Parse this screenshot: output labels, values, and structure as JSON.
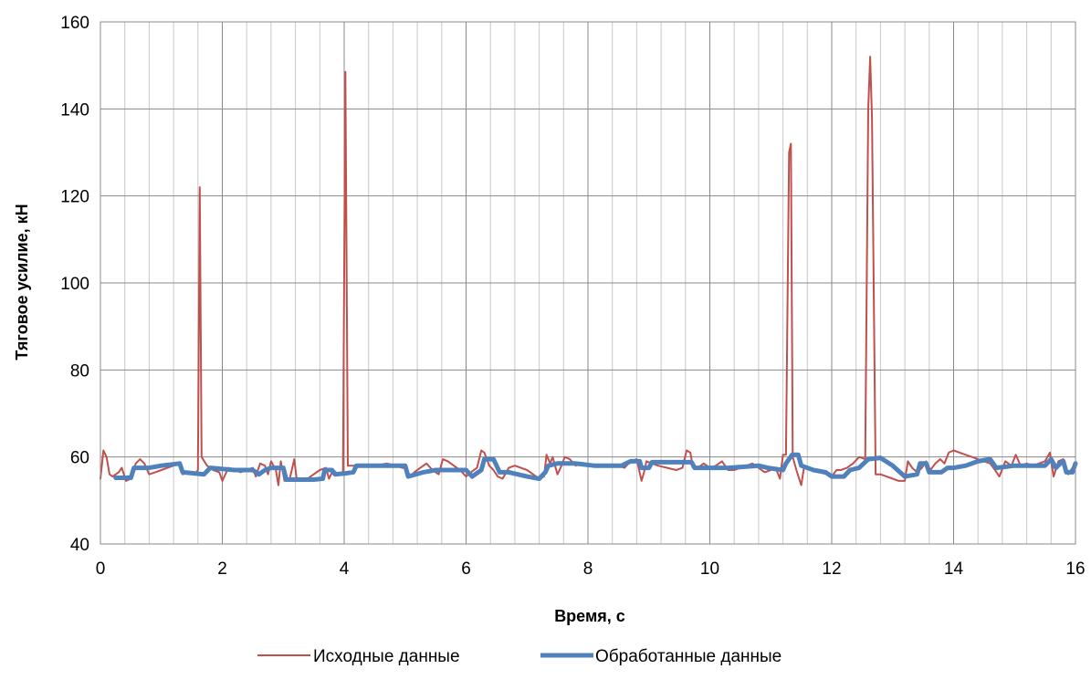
{
  "chart_data": {
    "type": "line",
    "xlabel": "Время,  с",
    "ylabel": "Тяговое  усилие,  кН",
    "xlim": [
      0,
      16
    ],
    "ylim": [
      40,
      160
    ],
    "x_ticks": [
      "0",
      "2",
      "4",
      "6",
      "8",
      "10",
      "12",
      "14",
      "16"
    ],
    "y_ticks": [
      "40",
      "60",
      "80",
      "100",
      "120",
      "140",
      "160"
    ],
    "minor_x_step": 0.4,
    "grid": true,
    "legend_position": "bottom",
    "series": [
      {
        "name": "Исходные данные",
        "color": "#c0504d",
        "points": [
          [
            0.0,
            55.0
          ],
          [
            0.05,
            61.5
          ],
          [
            0.1,
            60.0
          ],
          [
            0.15,
            56.0
          ],
          [
            0.2,
            55.5
          ],
          [
            0.3,
            56.5
          ],
          [
            0.35,
            57.5
          ],
          [
            0.42,
            54.5
          ],
          [
            0.5,
            55.0
          ],
          [
            0.58,
            58.5
          ],
          [
            0.65,
            59.5
          ],
          [
            0.72,
            58.5
          ],
          [
            0.8,
            56.0
          ],
          [
            0.9,
            56.5
          ],
          [
            1.0,
            57.0
          ],
          [
            1.1,
            57.5
          ],
          [
            1.2,
            58.0
          ],
          [
            1.28,
            58.5
          ],
          [
            1.35,
            56.0
          ],
          [
            1.45,
            56.5
          ],
          [
            1.55,
            56.0
          ],
          [
            1.6,
            57.0
          ],
          [
            1.63,
            122.0
          ],
          [
            1.66,
            60.0
          ],
          [
            1.75,
            58.0
          ],
          [
            1.85,
            57.0
          ],
          [
            1.95,
            56.5
          ],
          [
            2.0,
            54.5
          ],
          [
            2.1,
            57.5
          ],
          [
            2.2,
            57.0
          ],
          [
            2.3,
            56.5
          ],
          [
            2.4,
            57.0
          ],
          [
            2.5,
            57.5
          ],
          [
            2.55,
            55.5
          ],
          [
            2.62,
            58.5
          ],
          [
            2.7,
            58.0
          ],
          [
            2.75,
            56.0
          ],
          [
            2.8,
            59.0
          ],
          [
            2.88,
            57.0
          ],
          [
            2.92,
            53.5
          ],
          [
            2.96,
            59.0
          ],
          [
            3.02,
            54.5
          ],
          [
            3.1,
            54.5
          ],
          [
            3.18,
            59.5
          ],
          [
            3.22,
            55.0
          ],
          [
            3.3,
            54.5
          ],
          [
            3.4,
            55.0
          ],
          [
            3.5,
            56.0
          ],
          [
            3.6,
            57.0
          ],
          [
            3.7,
            57.5
          ],
          [
            3.75,
            55.0
          ],
          [
            3.82,
            57.0
          ],
          [
            3.9,
            56.0
          ],
          [
            3.98,
            56.5
          ],
          [
            4.02,
            148.5
          ],
          [
            4.06,
            58.0
          ],
          [
            4.15,
            58.0
          ],
          [
            4.3,
            58.0
          ],
          [
            4.5,
            58.0
          ],
          [
            4.7,
            58.5
          ],
          [
            4.85,
            58.0
          ],
          [
            4.95,
            57.5
          ],
          [
            5.02,
            57.5
          ],
          [
            5.08,
            55.5
          ],
          [
            5.15,
            56.5
          ],
          [
            5.25,
            57.5
          ],
          [
            5.35,
            58.5
          ],
          [
            5.45,
            57.0
          ],
          [
            5.55,
            56.0
          ],
          [
            5.62,
            59.5
          ],
          [
            5.7,
            59.0
          ],
          [
            5.8,
            58.0
          ],
          [
            5.9,
            57.0
          ],
          [
            6.0,
            55.5
          ],
          [
            6.08,
            56.5
          ],
          [
            6.18,
            57.5
          ],
          [
            6.25,
            61.5
          ],
          [
            6.3,
            61.0
          ],
          [
            6.38,
            58.0
          ],
          [
            6.45,
            57.0
          ],
          [
            6.52,
            55.5
          ],
          [
            6.6,
            55.0
          ],
          [
            6.7,
            57.5
          ],
          [
            6.8,
            58.0
          ],
          [
            6.9,
            57.5
          ],
          [
            7.0,
            57.0
          ],
          [
            7.1,
            56.0
          ],
          [
            7.2,
            55.0
          ],
          [
            7.28,
            55.5
          ],
          [
            7.32,
            60.5
          ],
          [
            7.38,
            58.5
          ],
          [
            7.42,
            60.0
          ],
          [
            7.5,
            56.0
          ],
          [
            7.55,
            57.5
          ],
          [
            7.62,
            60.0
          ],
          [
            7.7,
            59.5
          ],
          [
            7.8,
            58.0
          ],
          [
            7.9,
            58.5
          ],
          [
            8.0,
            58.0
          ],
          [
            8.1,
            58.0
          ],
          [
            8.3,
            58.0
          ],
          [
            8.5,
            58.0
          ],
          [
            8.6,
            57.5
          ],
          [
            8.7,
            59.0
          ],
          [
            8.8,
            59.5
          ],
          [
            8.88,
            54.5
          ],
          [
            8.92,
            56.5
          ],
          [
            8.96,
            59.0
          ],
          [
            9.05,
            58.5
          ],
          [
            9.15,
            58.0
          ],
          [
            9.3,
            57.5
          ],
          [
            9.45,
            57.0
          ],
          [
            9.55,
            57.5
          ],
          [
            9.62,
            61.5
          ],
          [
            9.68,
            61.0
          ],
          [
            9.72,
            58.0
          ],
          [
            9.8,
            57.5
          ],
          [
            9.9,
            58.5
          ],
          [
            10.0,
            57.5
          ],
          [
            10.1,
            58.0
          ],
          [
            10.2,
            59.0
          ],
          [
            10.3,
            57.0
          ],
          [
            10.4,
            57.0
          ],
          [
            10.5,
            57.5
          ],
          [
            10.6,
            58.0
          ],
          [
            10.7,
            58.5
          ],
          [
            10.8,
            57.5
          ],
          [
            10.9,
            56.5
          ],
          [
            11.0,
            57.0
          ],
          [
            11.08,
            57.5
          ],
          [
            11.15,
            55.0
          ],
          [
            11.2,
            60.5
          ],
          [
            11.25,
            60.5
          ],
          [
            11.3,
            130.0
          ],
          [
            11.33,
            132.0
          ],
          [
            11.36,
            60.0
          ],
          [
            11.42,
            57.0
          ],
          [
            11.5,
            53.5
          ],
          [
            11.55,
            58.0
          ],
          [
            11.65,
            57.5
          ],
          [
            11.8,
            56.5
          ],
          [
            11.92,
            56.0
          ],
          [
            12.0,
            55.5
          ],
          [
            12.08,
            57.0
          ],
          [
            12.15,
            57.0
          ],
          [
            12.25,
            57.5
          ],
          [
            12.35,
            58.5
          ],
          [
            12.45,
            60.0
          ],
          [
            12.55,
            59.5
          ],
          [
            12.6,
            140.0
          ],
          [
            12.63,
            152.0
          ],
          [
            12.66,
            138.0
          ],
          [
            12.72,
            56.0
          ],
          [
            12.8,
            56.0
          ],
          [
            12.9,
            55.5
          ],
          [
            13.0,
            55.0
          ],
          [
            13.1,
            54.5
          ],
          [
            13.2,
            54.5
          ],
          [
            13.25,
            59.0
          ],
          [
            13.32,
            57.5
          ],
          [
            13.4,
            56.5
          ],
          [
            13.48,
            57.5
          ],
          [
            13.55,
            59.0
          ],
          [
            13.62,
            57.0
          ],
          [
            13.7,
            58.5
          ],
          [
            13.78,
            59.5
          ],
          [
            13.85,
            58.5
          ],
          [
            13.92,
            61.0
          ],
          [
            14.0,
            61.5
          ],
          [
            14.1,
            61.0
          ],
          [
            14.2,
            60.5
          ],
          [
            14.3,
            60.0
          ],
          [
            14.4,
            59.5
          ],
          [
            14.5,
            59.0
          ],
          [
            14.6,
            58.5
          ],
          [
            14.68,
            57.0
          ],
          [
            14.75,
            55.5
          ],
          [
            14.85,
            59.0
          ],
          [
            14.95,
            58.0
          ],
          [
            15.02,
            60.5
          ],
          [
            15.1,
            58.0
          ],
          [
            15.2,
            58.5
          ],
          [
            15.3,
            58.0
          ],
          [
            15.4,
            58.5
          ],
          [
            15.5,
            59.0
          ],
          [
            15.58,
            61.0
          ],
          [
            15.64,
            55.5
          ],
          [
            15.72,
            59.0
          ],
          [
            15.8,
            59.5
          ],
          [
            15.88,
            56.0
          ],
          [
            15.95,
            57.5
          ],
          [
            16.0,
            57.5
          ]
        ]
      },
      {
        "name": "Обработанные данные",
        "color": "#4f81bd",
        "points": [
          [
            0.25,
            55.2
          ],
          [
            0.5,
            55.2
          ],
          [
            0.55,
            57.5
          ],
          [
            0.8,
            57.5
          ],
          [
            1.0,
            58.0
          ],
          [
            1.3,
            58.5
          ],
          [
            1.35,
            56.5
          ],
          [
            1.7,
            56.0
          ],
          [
            1.8,
            57.5
          ],
          [
            2.2,
            57.0
          ],
          [
            2.5,
            57.0
          ],
          [
            2.6,
            56.0
          ],
          [
            2.7,
            57.0
          ],
          [
            2.8,
            57.5
          ],
          [
            3.0,
            57.5
          ],
          [
            3.05,
            54.8
          ],
          [
            3.5,
            54.8
          ],
          [
            3.65,
            55.0
          ],
          [
            3.68,
            57.0
          ],
          [
            3.8,
            57.0
          ],
          [
            3.85,
            56.0
          ],
          [
            4.0,
            56.2
          ],
          [
            4.15,
            56.5
          ],
          [
            4.2,
            58.0
          ],
          [
            4.6,
            58.0
          ],
          [
            5.0,
            58.0
          ],
          [
            5.05,
            55.5
          ],
          [
            5.3,
            56.5
          ],
          [
            5.5,
            57.0
          ],
          [
            5.8,
            57.0
          ],
          [
            6.0,
            57.0
          ],
          [
            6.1,
            55.5
          ],
          [
            6.25,
            57.0
          ],
          [
            6.3,
            59.5
          ],
          [
            6.45,
            59.5
          ],
          [
            6.5,
            58.0
          ],
          [
            6.55,
            56.5
          ],
          [
            6.7,
            56.5
          ],
          [
            7.0,
            55.5
          ],
          [
            7.2,
            55.0
          ],
          [
            7.3,
            56.5
          ],
          [
            7.35,
            58.0
          ],
          [
            7.5,
            58.5
          ],
          [
            7.8,
            58.5
          ],
          [
            8.1,
            58.0
          ],
          [
            8.4,
            58.0
          ],
          [
            8.55,
            58.0
          ],
          [
            8.7,
            59.0
          ],
          [
            8.85,
            59.0
          ],
          [
            8.88,
            57.5
          ],
          [
            9.0,
            57.5
          ],
          [
            9.05,
            58.8
          ],
          [
            9.6,
            58.8
          ],
          [
            9.7,
            58.8
          ],
          [
            9.75,
            57.5
          ],
          [
            10.1,
            57.5
          ],
          [
            10.3,
            57.5
          ],
          [
            10.6,
            57.8
          ],
          [
            10.8,
            58.0
          ],
          [
            10.95,
            57.5
          ],
          [
            11.2,
            57.0
          ],
          [
            11.25,
            58.5
          ],
          [
            11.35,
            60.5
          ],
          [
            11.45,
            60.5
          ],
          [
            11.5,
            58.0
          ],
          [
            11.7,
            57.0
          ],
          [
            11.9,
            56.5
          ],
          [
            12.0,
            55.5
          ],
          [
            12.2,
            55.5
          ],
          [
            12.3,
            57.0
          ],
          [
            12.45,
            57.5
          ],
          [
            12.6,
            59.5
          ],
          [
            12.8,
            59.8
          ],
          [
            13.0,
            58.0
          ],
          [
            13.2,
            55.5
          ],
          [
            13.4,
            56.0
          ],
          [
            13.45,
            58.5
          ],
          [
            13.55,
            58.5
          ],
          [
            13.6,
            56.5
          ],
          [
            13.8,
            56.5
          ],
          [
            13.9,
            57.5
          ],
          [
            14.0,
            57.5
          ],
          [
            14.2,
            58.0
          ],
          [
            14.4,
            59.0
          ],
          [
            14.6,
            59.5
          ],
          [
            14.7,
            57.5
          ],
          [
            15.0,
            58.0
          ],
          [
            15.3,
            58.0
          ],
          [
            15.5,
            58.0
          ],
          [
            15.6,
            59.5
          ],
          [
            15.68,
            57.5
          ],
          [
            15.75,
            58.5
          ],
          [
            15.8,
            59.0
          ],
          [
            15.85,
            56.5
          ],
          [
            15.95,
            56.5
          ],
          [
            16.0,
            58.5
          ]
        ]
      }
    ]
  }
}
